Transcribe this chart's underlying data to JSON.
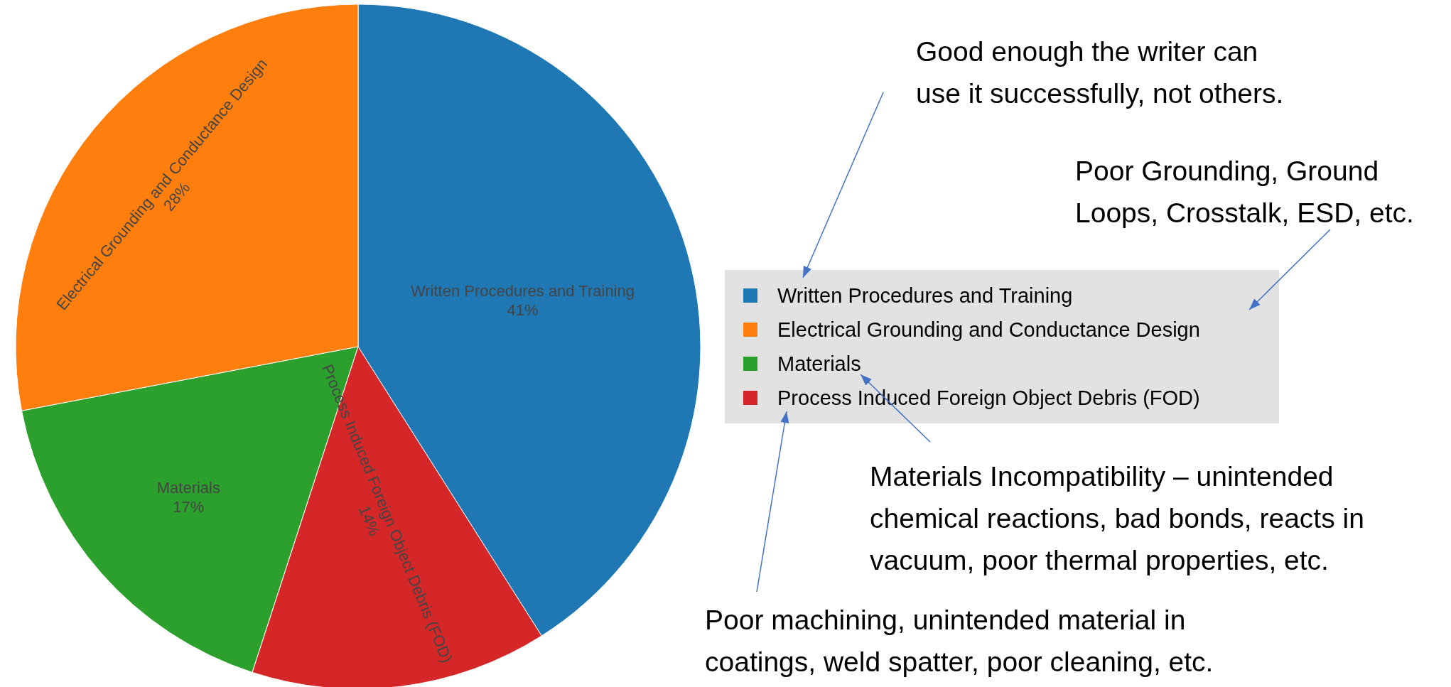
{
  "chart_data": {
    "type": "pie",
    "categories": [
      "Written Procedures and Training",
      "Electrical Grounding and Conductance Design",
      "Materials",
      "Process Induced Foreign Object Debris (FOD)"
    ],
    "values": [
      41,
      28,
      17,
      14
    ],
    "colors": [
      "#1f77b4",
      "#ff7f0e",
      "#2ca02c",
      "#d62728"
    ],
    "value_labels": [
      "41%",
      "28%",
      "17%",
      "14%"
    ],
    "legend": "right",
    "annotations": [
      "Good enough the writer can\nuse it successfully, not others.",
      "Poor Grounding, Ground\nLoops, Crosstalk, ESD, etc.",
      "Materials Incompatibility – unintended\nchemical reactions, bad bonds, reacts in\nvacuum, poor thermal properties, etc.",
      "Poor machining, unintended material in\ncoatings, weld spatter, poor cleaning, etc."
    ]
  }
}
